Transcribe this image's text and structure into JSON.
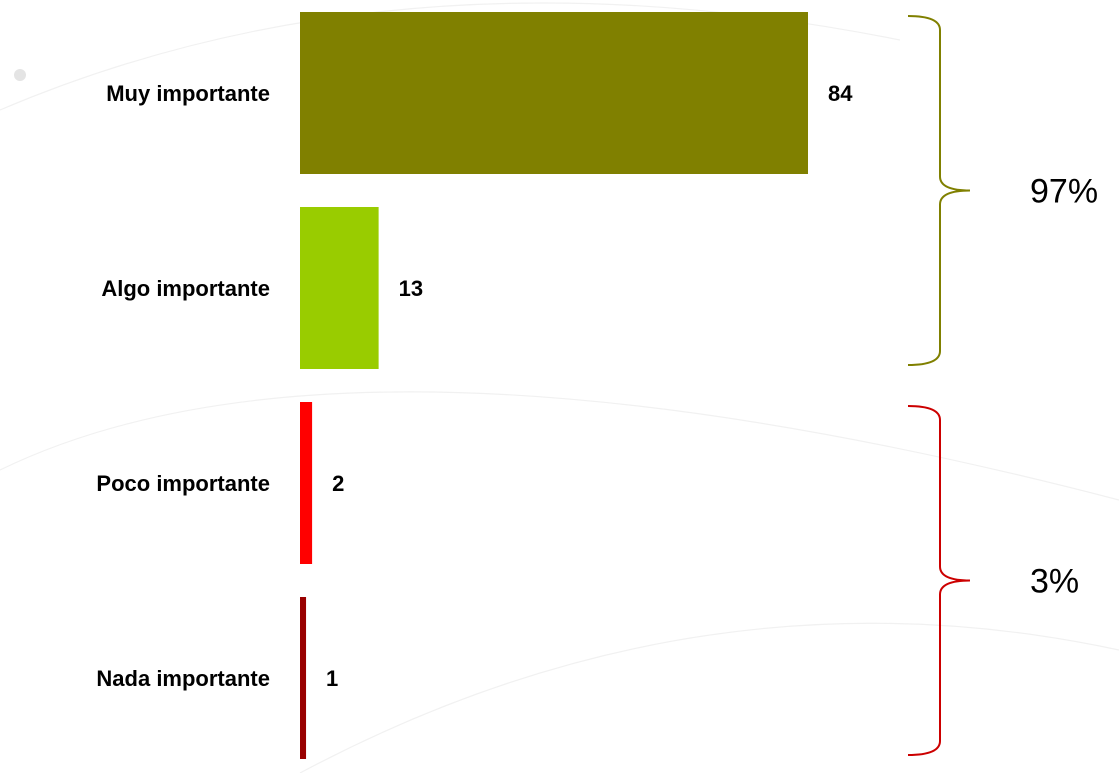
{
  "chart_data": {
    "type": "bar",
    "orientation": "horizontal",
    "categories": [
      "Muy importante",
      "Algo importante",
      "Poco importante",
      "Nada importante"
    ],
    "values": [
      84,
      13,
      2,
      1
    ],
    "colors": [
      "#808000",
      "#99cc00",
      "#ff0000",
      "#990000"
    ],
    "xlim": [
      0,
      84
    ],
    "grid": false,
    "legend": "none",
    "groups": [
      {
        "label": "97%",
        "categories": [
          "Muy importante",
          "Algo importante"
        ],
        "color": "#808000"
      },
      {
        "label": "3%",
        "categories": [
          "Poco importante",
          "Nada importante"
        ],
        "color": "#cc0000"
      }
    ]
  }
}
